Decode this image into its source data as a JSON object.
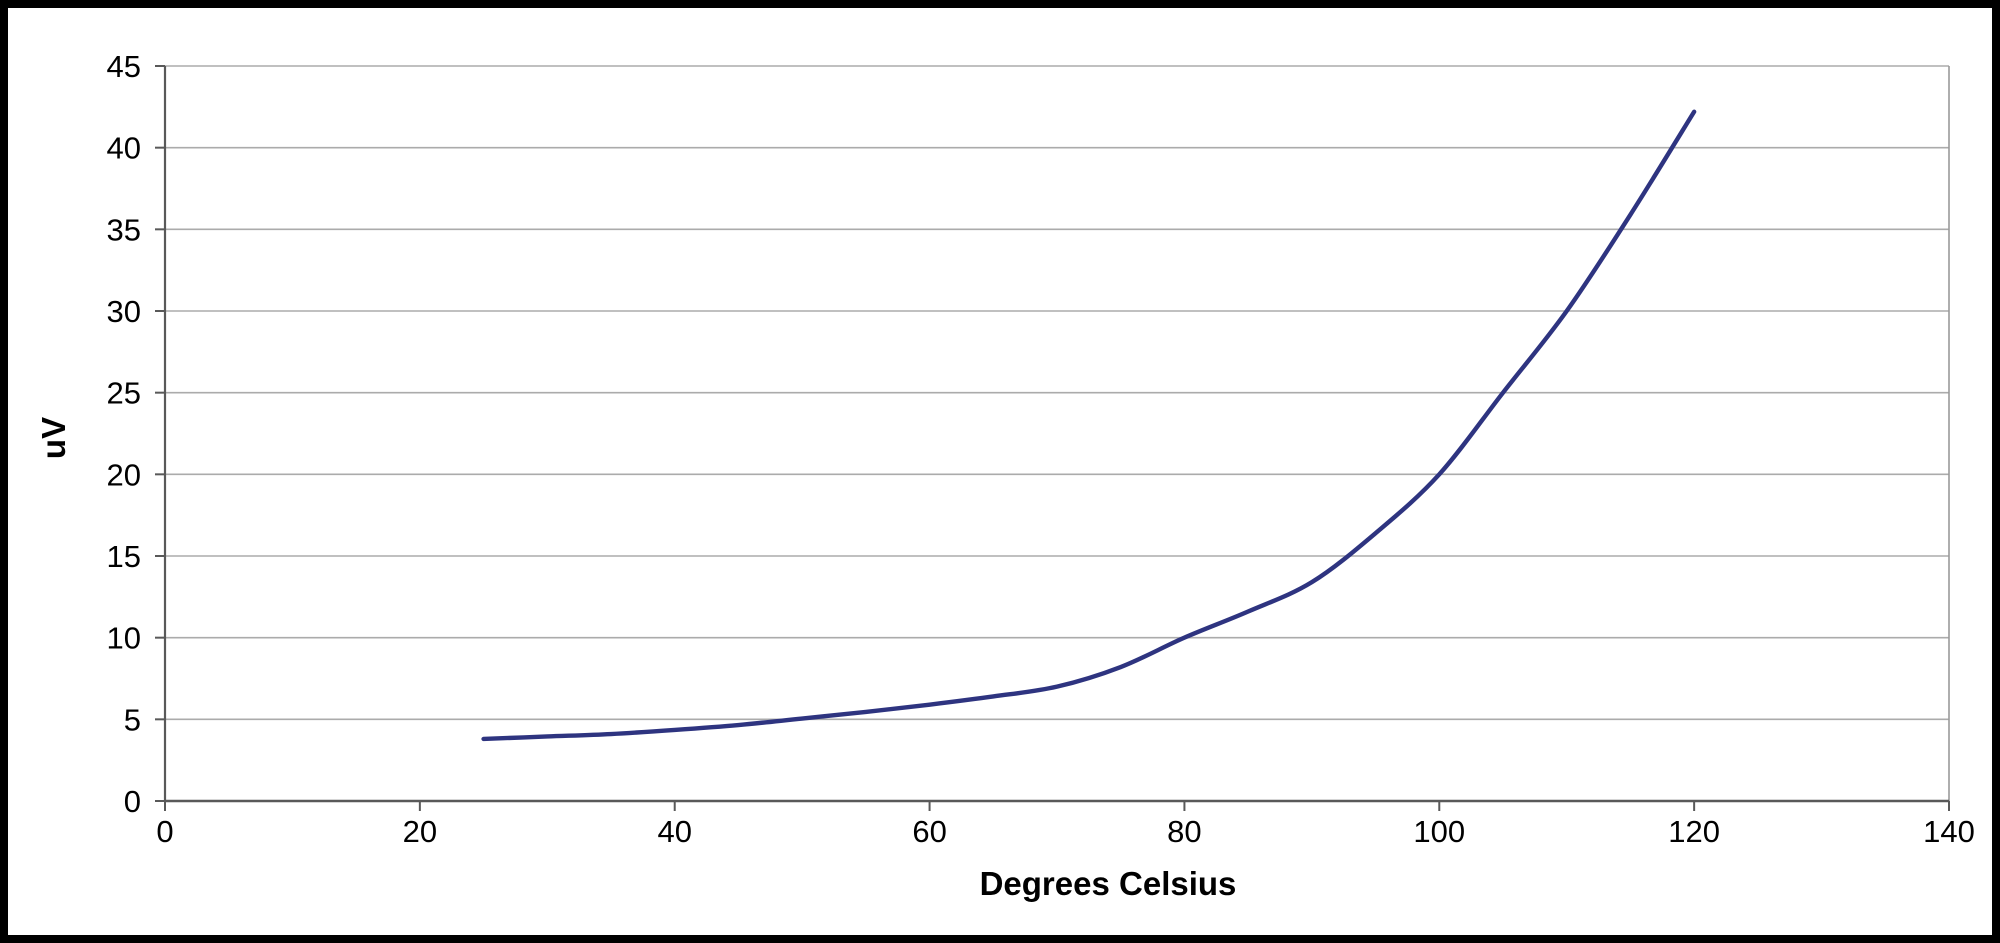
{
  "chart_data": {
    "type": "line",
    "title": "",
    "xlabel": "Degrees Celsius",
    "ylabel": "uV",
    "xlim": [
      0,
      140
    ],
    "ylim": [
      0,
      45
    ],
    "xticks": [
      0,
      20,
      40,
      60,
      80,
      100,
      120,
      140
    ],
    "yticks": [
      0,
      5,
      10,
      15,
      20,
      25,
      30,
      35,
      40,
      45
    ],
    "grid": "horizontal-gridlines-on",
    "legend_position": "none",
    "series": [
      {
        "name": "uV vs Degrees Celsius",
        "color": "#2e3480",
        "x": [
          25,
          30,
          35,
          40,
          45,
          50,
          55,
          60,
          65,
          70,
          75,
          80,
          85,
          90,
          95,
          100,
          105,
          110,
          115,
          120
        ],
        "values": [
          3.8,
          3.95,
          4.1,
          4.35,
          4.65,
          5.05,
          5.45,
          5.9,
          6.4,
          7.0,
          8.2,
          10.0,
          11.6,
          13.4,
          16.4,
          20.0,
          25.0,
          30.0,
          35.9,
          42.2
        ]
      }
    ]
  },
  "colors": {
    "line": "#2e3480",
    "gridline": "#ababab",
    "plot_border": "#9a9a9a",
    "axis": "#595959",
    "text": "#000000",
    "background": "#ffffff",
    "frame": "#000000"
  }
}
